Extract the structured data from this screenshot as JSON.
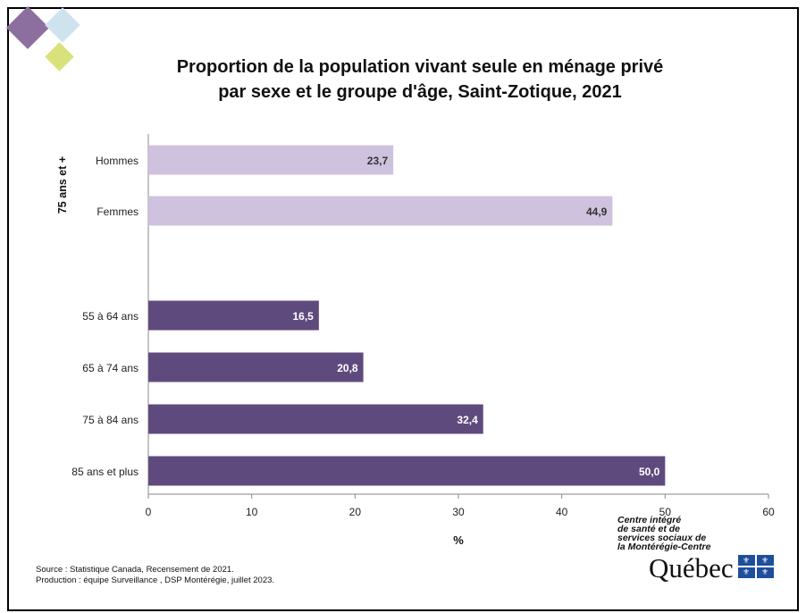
{
  "title_line1": "Proportion de la population vivant seule en ménage privé",
  "title_line2": "par sexe et le groupe d'âge, Saint-Zotique, 2021",
  "footer": {
    "source": "Source : Statistique Canada, Recensement de 2021.",
    "production": "Production : équipe Surveillance , DSP Montérégie, juillet 2023."
  },
  "logo": {
    "line1": "Centre intégré",
    "line2": "de santé et de",
    "line3": "services sociaux de",
    "line4": "la Montérégie-Centre",
    "word": "Québec"
  },
  "colors": {
    "light_bar": "#cfc2df",
    "dark_bar": "#5f4a7e",
    "deco_purple": "#8c6f9f",
    "deco_blue": "#cfe3ee",
    "deco_green": "#d9e27a"
  },
  "chart_data": {
    "type": "bar",
    "orientation": "horizontal",
    "xlabel": "%",
    "xlim": [
      0,
      60
    ],
    "xticks": [
      0,
      10,
      20,
      30,
      40,
      50,
      60
    ],
    "group_label": "75 ans et +",
    "bars": [
      {
        "label": "Hommes",
        "value": 23.7,
        "display": "23,7",
        "group": "75 ans et +"
      },
      {
        "label": "Femmes",
        "value": 44.9,
        "display": "44,9",
        "group": "75 ans et +"
      },
      {
        "label": "55 à 64 ans",
        "value": 16.5,
        "display": "16,5",
        "group": ""
      },
      {
        "label": "65 à 74 ans",
        "value": 20.8,
        "display": "20,8",
        "group": ""
      },
      {
        "label": "75 à 84 ans",
        "value": 32.4,
        "display": "32,4",
        "group": ""
      },
      {
        "label": "85 ans et plus",
        "value": 50.0,
        "display": "50,0",
        "group": ""
      }
    ],
    "grid": false
  }
}
